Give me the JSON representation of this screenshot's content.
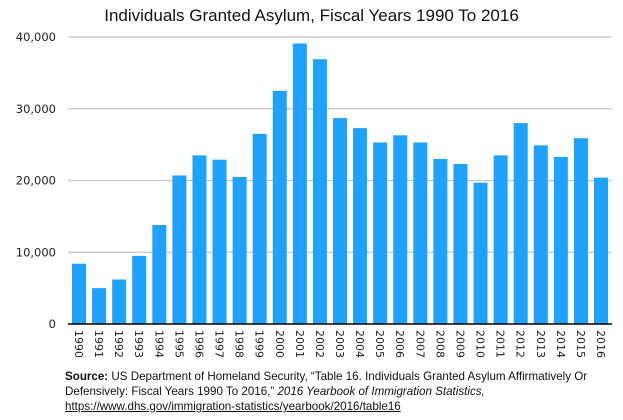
{
  "chart_data": {
    "type": "bar",
    "title": "Individuals Granted Asylum, Fiscal Years 1990 To 2016",
    "xlabel": "",
    "ylabel": "",
    "ylim": [
      0,
      40000
    ],
    "yticks": [
      "0",
      "10,000",
      "20,000",
      "30,000",
      "40,000"
    ],
    "grid": true,
    "categories": [
      "1990",
      "1991",
      "1992",
      "1993",
      "1994",
      "1995",
      "1996",
      "1997",
      "1998",
      "1999",
      "2000",
      "2001",
      "2002",
      "2003",
      "2004",
      "2005",
      "2006",
      "2007",
      "2008",
      "2009",
      "2010",
      "2011",
      "2012",
      "2013",
      "2014",
      "2015",
      "2016"
    ],
    "values": [
      8400,
      5000,
      6200,
      9500,
      13800,
      20700,
      23500,
      22900,
      20500,
      26500,
      32500,
      39100,
      36900,
      28700,
      27300,
      25300,
      26300,
      25300,
      23000,
      22300,
      19700,
      23500,
      28000,
      24900,
      23300,
      25900,
      20400
    ],
    "bar_color": "#1ea2fd"
  },
  "source": {
    "label": "Source:",
    "text": " US Department of Homeland Security, “Table 16. Individuals Granted Asylum Affirmatively Or Defensively: Fiscal Years 1990 To 2016,”  ",
    "publication": "2016 Yearbook of Immigration Statistics,",
    "url": "https://www.dhs.gov/immigration-statistics/yearbook/2016/table16"
  }
}
